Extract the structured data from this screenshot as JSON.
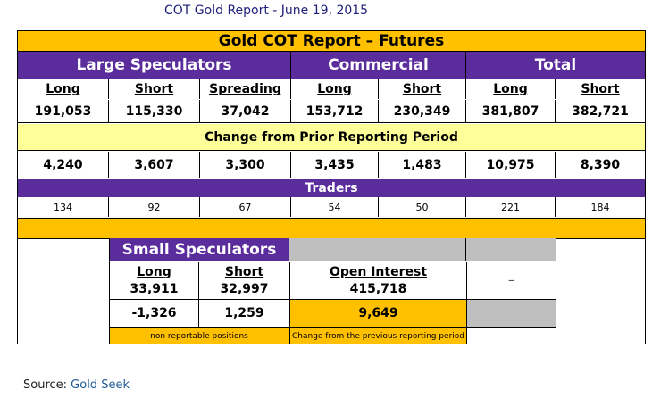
{
  "title": "COT Gold Report - June 19, 2015",
  "table_title": "Gold COT Report – Futures",
  "groups": [
    "Large Speculators",
    "Commercial",
    "Total"
  ],
  "columns": [
    "Long",
    "Short",
    "Spreading",
    "Long",
    "Short",
    "Long",
    "Short"
  ],
  "positions": [
    "191,053",
    "115,330",
    "37,042",
    "153,712",
    "230,349",
    "381,807",
    "382,721"
  ],
  "change_label": "Change from Prior Reporting Period",
  "changes": [
    "4,240",
    "3,607",
    "3,300",
    "3,435",
    "1,483",
    "10,975",
    "8,390"
  ],
  "traders_label": "Traders",
  "traders": [
    "134",
    "92",
    "67",
    "54",
    "50",
    "221",
    "184"
  ],
  "small": {
    "title": "Small Speculators",
    "long_label": "Long",
    "short_label": "Short",
    "long": "33,911",
    "short": "32,997",
    "long_change": "-1,326",
    "short_change": "1,259",
    "oi_label": "Open Interest",
    "oi": "415,718",
    "oi_change": "9,649",
    "note_left": "non reportable positions",
    "note_right": "Change from the previous reporting period",
    "dash": "_"
  },
  "source_label": "Source:",
  "source_name": "Gold Seek",
  "colors": {
    "gold": "#FFC000",
    "purple": "#5B2C9C",
    "light_yellow": "#FFFF99",
    "gray": "#BFBFBF"
  }
}
